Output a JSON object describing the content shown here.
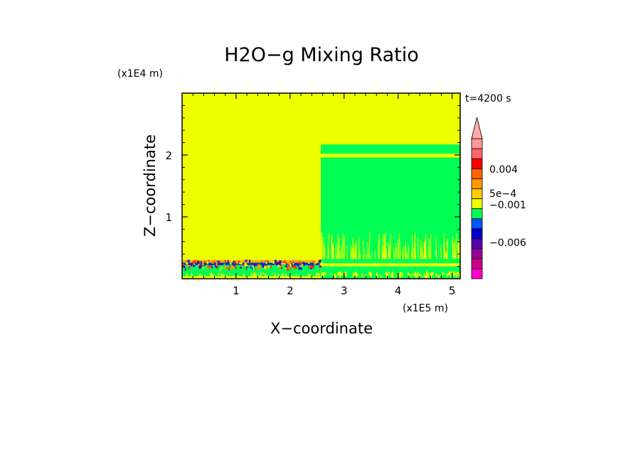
{
  "chart_data": {
    "type": "heatmap",
    "title": "H2O−g Mixing Ratio",
    "xlabel": "X−coordinate",
    "ylabel": "Z−coordinate",
    "x_scale_label": "(x1E5 m)",
    "y_scale_label": "(x1E4 m)",
    "time_label": "t=4200 s",
    "xlim": [
      0,
      5.15
    ],
    "ylim": [
      0,
      3.0
    ],
    "x_ticks": [
      {
        "value": 1,
        "label": "1"
      },
      {
        "value": 2,
        "label": "2"
      },
      {
        "value": 3,
        "label": "3"
      },
      {
        "value": 4,
        "label": "4"
      },
      {
        "value": 5,
        "label": "5"
      }
    ],
    "y_ticks": [
      {
        "value": 1,
        "label": "1"
      },
      {
        "value": 2,
        "label": "2"
      }
    ],
    "regions": [
      {
        "x": [
          0,
          5.15
        ],
        "z": [
          0,
          3.0
        ],
        "color": "#eeff00"
      },
      {
        "x": [
          2.57,
          5.15
        ],
        "z": [
          0,
          2.17
        ],
        "color": "#00ff55"
      },
      {
        "x": [
          2.57,
          5.15
        ],
        "z": [
          1.96,
          2.02
        ],
        "color": "#eeff00"
      },
      {
        "x": [
          0,
          2.57
        ],
        "z": [
          0.04,
          0.22
        ],
        "color": "#00ff55"
      },
      {
        "x": [
          0,
          2.57
        ],
        "z": [
          0.22,
          0.26
        ],
        "color": "#0033cc"
      },
      {
        "x": [
          0,
          2.57
        ],
        "z": [
          0.26,
          0.3
        ],
        "color": "#ffaa00"
      },
      {
        "x": [
          2.57,
          5.15
        ],
        "z": [
          0.2,
          0.25
        ],
        "color": "#eeff00"
      }
    ],
    "colorbar": {
      "colors": [
        "#ff00cc",
        "#cc0088",
        "#990099",
        "#5500aa",
        "#0000cc",
        "#0055ff",
        "#00ff55",
        "#eeff00",
        "#ffcc00",
        "#ff9900",
        "#ff6600",
        "#ff0000",
        "#ff6666",
        "#ff9999"
      ],
      "labels": [
        {
          "text": "0.004",
          "level": 0.004
        },
        {
          "text": "5e−4",
          "level": 0.0005
        },
        {
          "text": "−0.001",
          "level": -0.001
        },
        {
          "text": "−0.006",
          "level": -0.006
        }
      ]
    }
  }
}
